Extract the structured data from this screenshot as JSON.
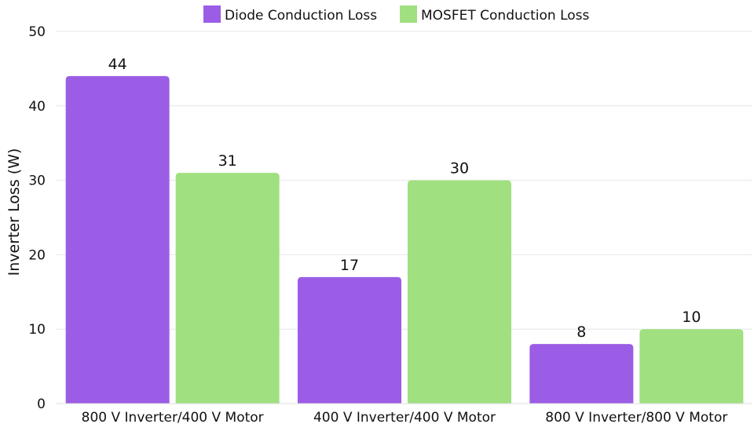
{
  "chart_data": {
    "type": "bar",
    "categories": [
      "800 V Inverter/400 V Motor",
      "400 V Inverter/400 V Motor",
      "800 V Inverter/800 V Motor"
    ],
    "series": [
      {
        "name": "Diode Conduction Loss",
        "values": [
          44,
          17,
          8
        ],
        "color": "#9b5de5"
      },
      {
        "name": "MOSFET Conduction Loss",
        "values": [
          31,
          30,
          10
        ],
        "color": "#a0e080"
      }
    ],
    "ylabel": "Inverter Loss (W)",
    "ylim": [
      0,
      50
    ],
    "yticks": [
      0,
      10,
      20,
      30,
      40,
      50
    ],
    "grid": true,
    "legend_position": "top-center",
    "data_labels": true
  }
}
